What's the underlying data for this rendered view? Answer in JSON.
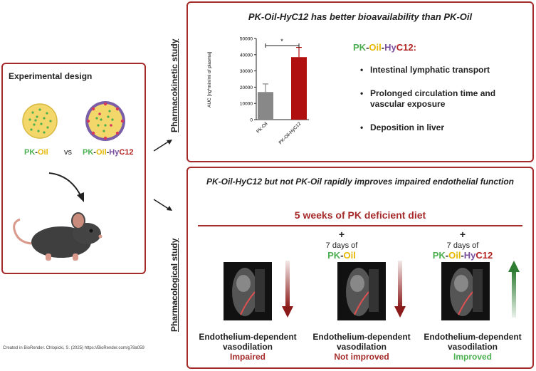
{
  "design": {
    "title": "Experimental design",
    "pk_oil": {
      "pk": "PK",
      "sep": "-",
      "oil": "Oil"
    },
    "vs": "vs",
    "pk_hyc": {
      "pk": "PK",
      "sep1": "-",
      "oil": "Oil",
      "sep2": "-",
      "hy": "Hy",
      "c12": "C12"
    }
  },
  "pk_study": {
    "side_label": "Pharmacokinetic study",
    "title": "PK-Oil-HyC12 has better bioavailability than PK-Oil",
    "legend": {
      "pk": "PK",
      "sep1": "-",
      "oil": "Oil",
      "sep2": "-",
      "hy": "Hy",
      "c12": "C12:"
    },
    "bullets": [
      "Intestinal lymphatic transport",
      "Prolonged circulation time and vascular exposure",
      "Deposition in liver"
    ]
  },
  "chart_data": {
    "type": "bar",
    "categories": [
      "PK-Oil",
      "PK-Oil-HyC12"
    ],
    "values": [
      17000,
      38500
    ],
    "errors": [
      5000,
      6000
    ],
    "colors": [
      "#888888",
      "#b01010"
    ],
    "ylabel": "AUC [ng*min/ml of plasma]",
    "ylim": [
      0,
      50000
    ],
    "yticks": [
      "0",
      "10000",
      "20000",
      "30000",
      "40000",
      "50000"
    ],
    "significance": "*"
  },
  "pharm_study": {
    "side_label": "Pharmacological study",
    "title": "PK-Oil-HyC12 but not PK-Oil rapidly improves impaired endothelial function",
    "diet": "5 weeks of PK deficient diet",
    "plus": "+",
    "days": "7 days of",
    "c2_label": {
      "pk": "PK",
      "sep": "-",
      "oil": "Oil"
    },
    "c3_label": {
      "pk": "PK",
      "sep1": "-",
      "oil": "Oil",
      "sep2": "-",
      "hy": "Hy",
      "c12": "C12"
    },
    "caption_line1": "Endothelium-dependent",
    "caption_line2": "vasodilation",
    "outcomes": [
      "Impaired",
      "Not improved",
      "Improved"
    ]
  },
  "credit": "Created in BioRender. Chlopicki, S. (2025) https://BioRender.com/g78a059"
}
